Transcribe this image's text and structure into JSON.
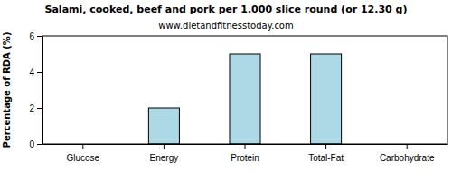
{
  "chart_data": {
    "type": "bar",
    "title": "Salami, cooked, beef and pork per 1.000 slice round (or 12.30 g)",
    "subtitle": "www.dietandfitnesstoday.com",
    "y_label": "Percentage of RDA (%)",
    "categories": [
      "Glucose",
      "Energy",
      "Protein",
      "Total-Fat",
      "Carbohydrate"
    ],
    "values": [
      0,
      2,
      5,
      5,
      0
    ],
    "color": "#add8e6",
    "ylim": [
      0,
      6
    ],
    "yticks": [
      0,
      2,
      4,
      6
    ],
    "grid": false
  }
}
